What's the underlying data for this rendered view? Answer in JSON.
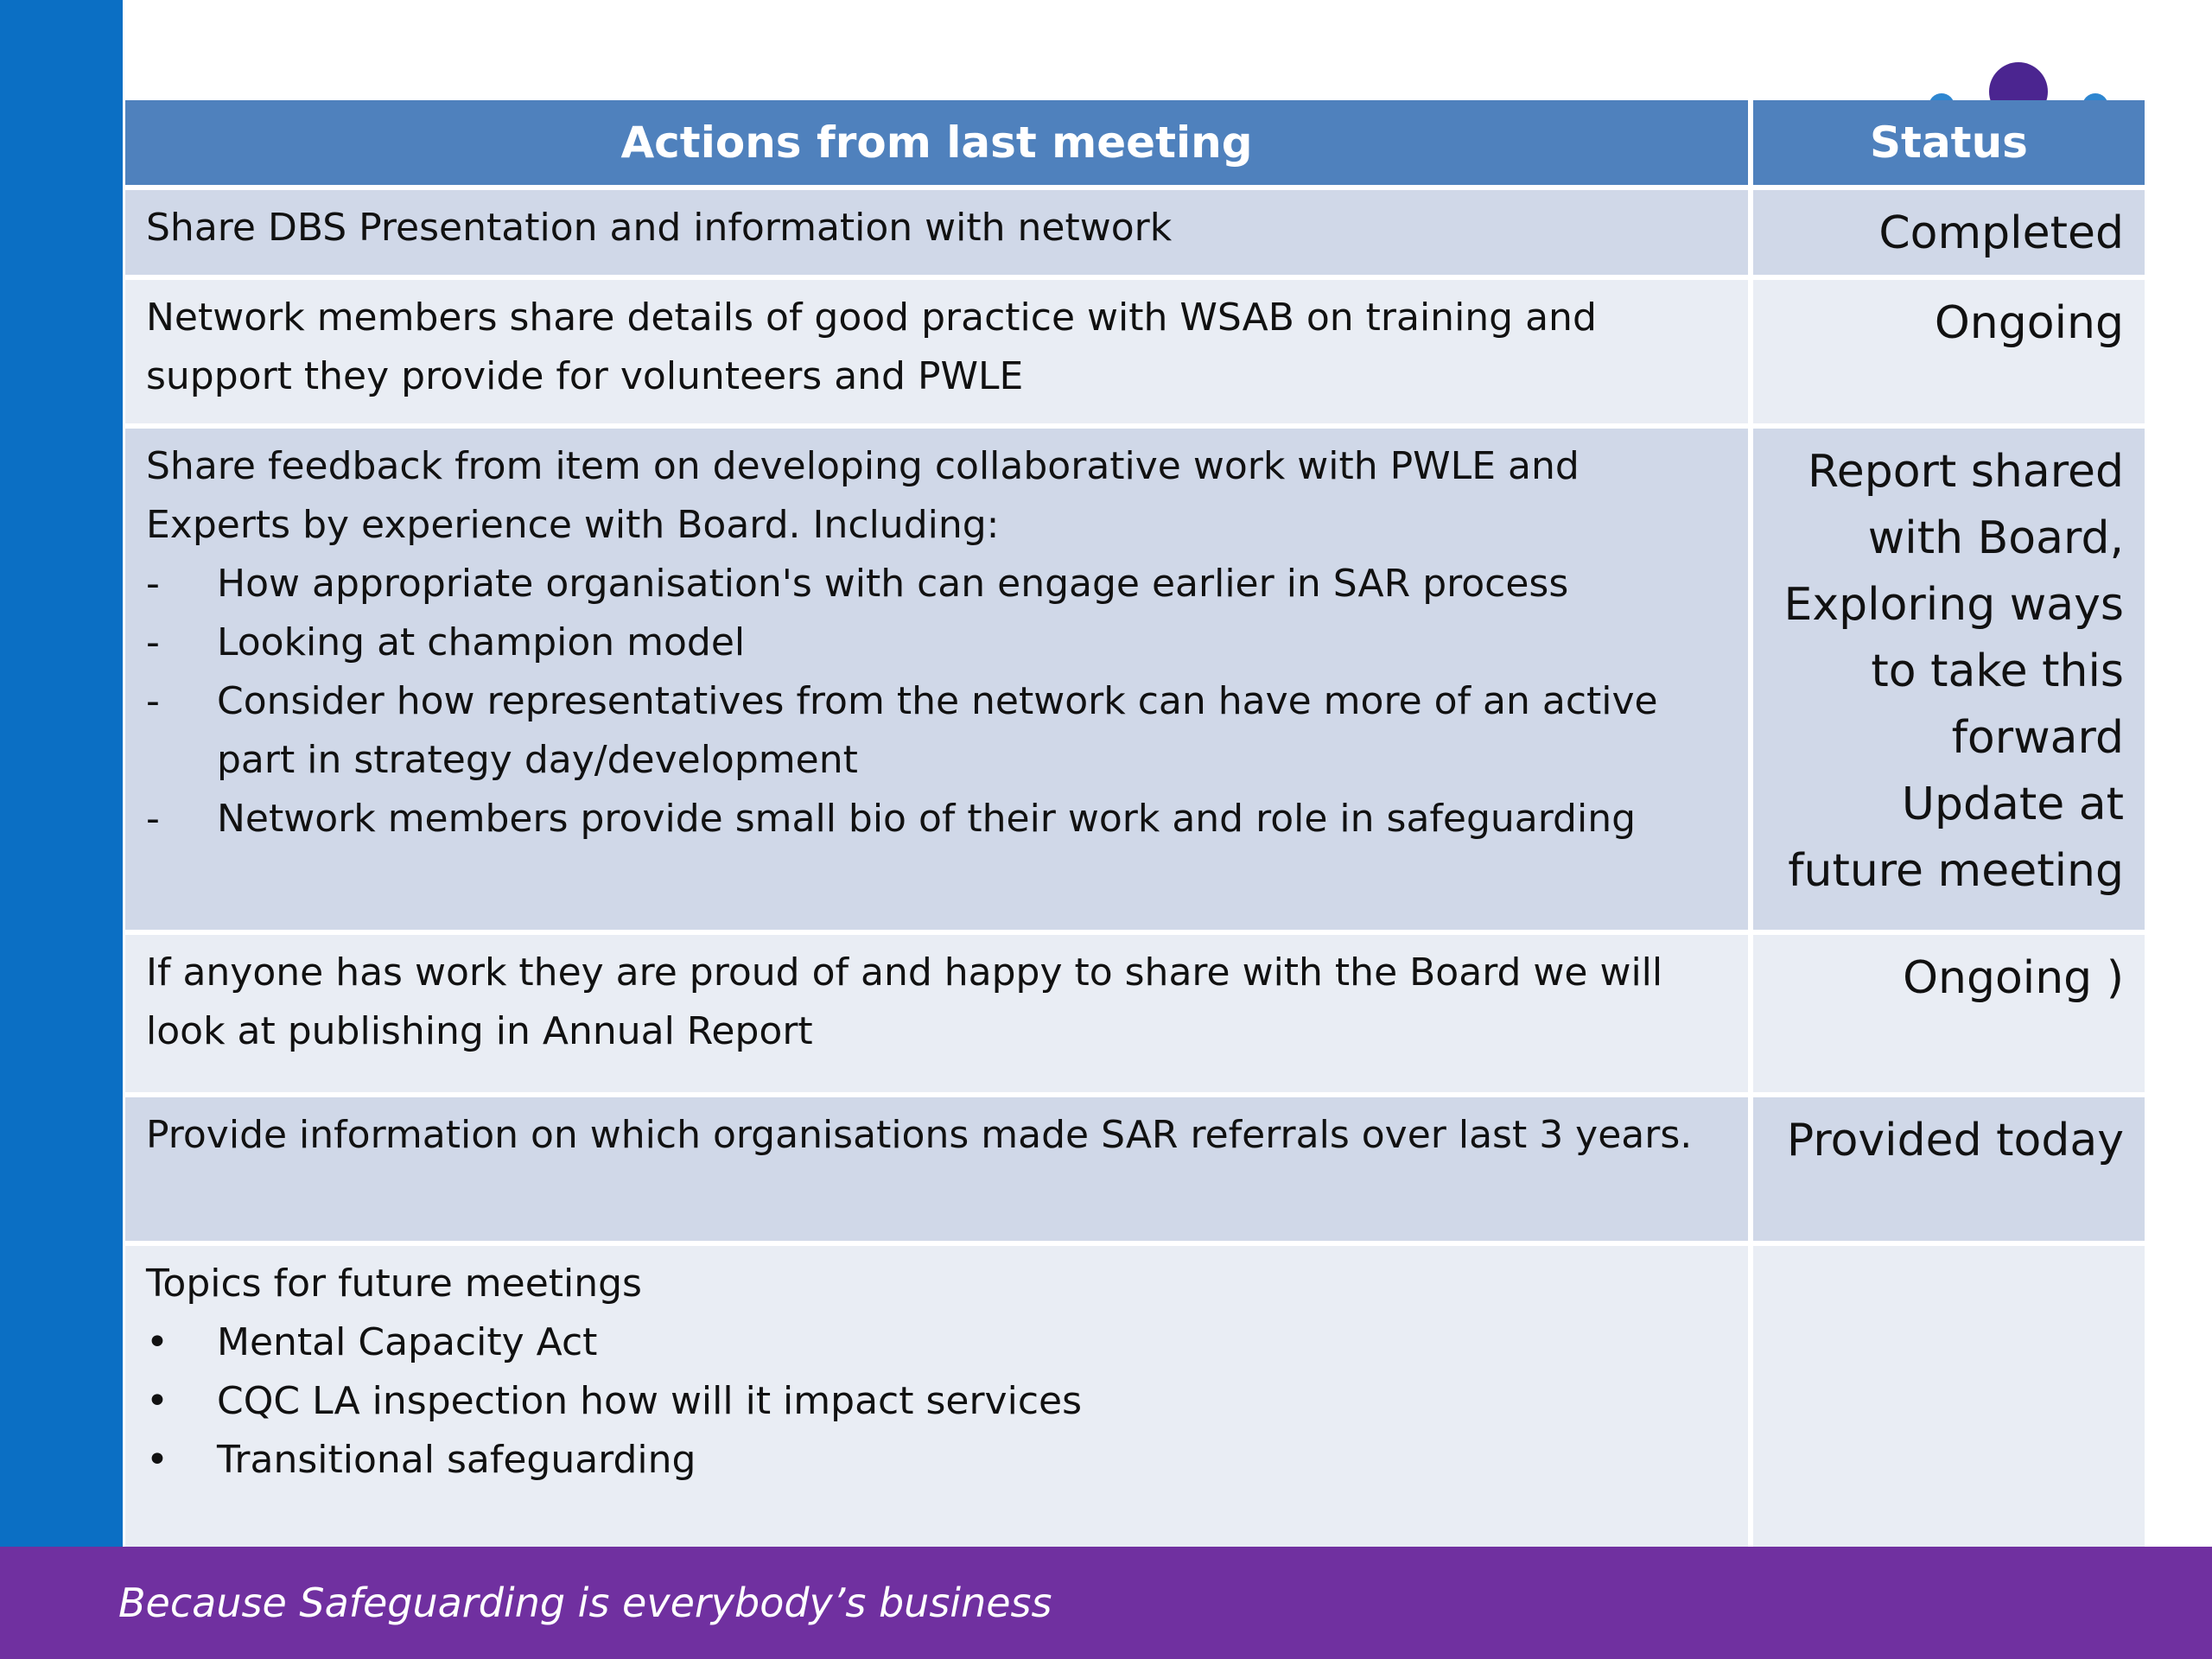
{
  "header": {
    "actions_title": "Actions from last meeting",
    "status_title": "Status"
  },
  "rows": [
    {
      "action": "Share DBS Presentation and information  with network",
      "status": "Completed"
    },
    {
      "action": "Network members share details of good practice with WSAB on training and support they provide for volunteers and PWLE",
      "status": "Ongoing"
    },
    {
      "action_intro": "Share feedback from item on developing collaborative work with PWLE and Experts by experience with Board. Including:",
      "action_items": [
        "How appropriate organisation's with can engage earlier in SAR process",
        "Looking at champion model",
        "Consider how representatives from the network can have more of an active part in strategy day/development",
        "Network members provide small bio of their work and role in safeguarding"
      ],
      "item_marker": "-",
      "status_lines": [
        "Report shared",
        "with Board,",
        "Exploring ways",
        "to take this",
        "forward",
        "Update at",
        "future meeting"
      ]
    },
    {
      "action": "If anyone has work they are proud of and happy to share with the Board we will look at publishing in Annual Report",
      "status": "Ongoing )"
    },
    {
      "action": "Provide information on which organisations made SAR referrals over last 3 years.",
      "status": "Provided today"
    },
    {
      "action_intro": "Topics for future meetings",
      "action_items": [
        "Mental Capacity Act",
        "CQC LA inspection how will it impact services",
        "Transitional safeguarding"
      ],
      "item_marker": "•",
      "status": ""
    }
  ],
  "footer": {
    "tagline": "Because Safeguarding is everybody’s business"
  },
  "colors": {
    "header_blue": "#4f81bd",
    "row_dark": "#d0d8e8",
    "row_light": "#e9edf4",
    "left_bar_blue": "#0b6fc4",
    "footer_purple": "#7030a0",
    "dot_purple": "#4b2590"
  }
}
